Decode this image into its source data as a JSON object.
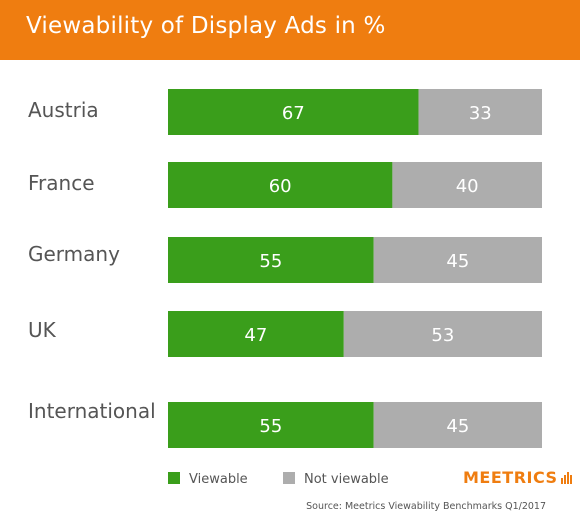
{
  "header": {
    "title": "Viewability of Display Ads in %"
  },
  "chart_data": {
    "type": "bar",
    "stacked": true,
    "orientation": "horizontal",
    "title": "Viewability of Display Ads in %",
    "categories": [
      "Austria",
      "France",
      "Germany",
      "UK",
      "International"
    ],
    "series": [
      {
        "name": "Viewable",
        "values": [
          67,
          60,
          55,
          47,
          55
        ],
        "color": "#3a9e1b"
      },
      {
        "name": "Not viewable",
        "values": [
          33,
          40,
          45,
          53,
          45
        ],
        "color": "#adadad"
      }
    ],
    "xlim": [
      0,
      100
    ],
    "grid": false,
    "legend": "bottom-left"
  },
  "legend": {
    "viewable": "Viewable",
    "not_viewable": "Not viewable"
  },
  "brand": {
    "name": "MEETRICS"
  },
  "source": "Source: Meetrics Viewability Benchmarks Q1/2017",
  "colors": {
    "header": "#ef7d10",
    "viewable": "#3a9e1b",
    "not_viewable": "#adadad",
    "brand": "#ef7d10"
  }
}
